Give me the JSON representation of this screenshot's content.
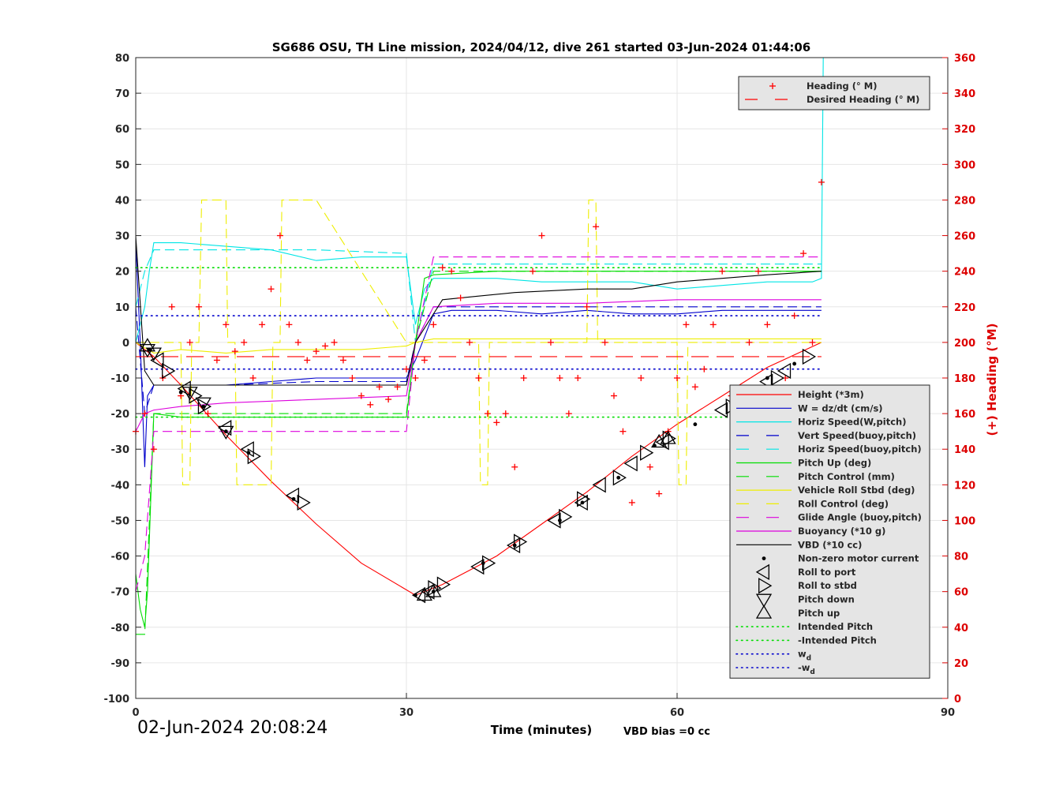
{
  "chart_data": {
    "type": "line",
    "title": "SG686 OSU, TH Line mission, 2024/04/12, dive 261 started 03-Jun-2024 01:44:06",
    "xlabel": "Time (minutes)",
    "ylabel_right": "(+) Heading (°M)",
    "xlim": [
      0,
      90
    ],
    "ylim_left": [
      -100,
      80
    ],
    "ylim_right": [
      0,
      360
    ],
    "x_ticks": [
      "0",
      "30",
      "60",
      "90"
    ],
    "y_ticks_left": [
      "80",
      "70",
      "60",
      "50",
      "40",
      "30",
      "20",
      "10",
      "0",
      "-10",
      "-20",
      "-30",
      "-40",
      "-50",
      "-60",
      "-70",
      "-80",
      "-90",
      "-100"
    ],
    "y_ticks_right": [
      "360",
      "340",
      "320",
      "300",
      "280",
      "260",
      "240",
      "220",
      "200",
      "180",
      "160",
      "140",
      "120",
      "100",
      "80",
      "60",
      "40",
      "20",
      "0"
    ],
    "grid": true,
    "colors": {
      "red": "#ff0000",
      "blue": "#0000cc",
      "cyan": "#00e5e5",
      "green": "#00dd00",
      "yellow": "#eeee00",
      "magenta": "#dd00dd",
      "black": "#000000",
      "axis_right": "#dd0000"
    },
    "timestamp": "02-Jun-2024 20:08:24",
    "vbd_bias": "VBD bias =0 cc",
    "legend_top": [
      {
        "name": "Heading (° M)",
        "style": "plus",
        "color": "#ff0000"
      },
      {
        "name": "Desired Heading (° M)",
        "style": "dash",
        "color": "#ff0000"
      }
    ],
    "legend_main": [
      {
        "name": "Height (*3m)",
        "style": "solid",
        "color": "#ff0000"
      },
      {
        "name": "W = dz/dt (cm/s)",
        "style": "solid",
        "color": "#0000cc"
      },
      {
        "name": "Horiz Speed(W,pitch)",
        "style": "solid",
        "color": "#00e5e5"
      },
      {
        "name": "Vert Speed(buoy,pitch)",
        "style": "dash",
        "color": "#0000cc"
      },
      {
        "name": "Horiz Speed(buoy,pitch)",
        "style": "dash",
        "color": "#00e5e5"
      },
      {
        "name": "Pitch Up (deg)",
        "style": "solid",
        "color": "#00dd00"
      },
      {
        "name": "Pitch Control (mm)",
        "style": "dash",
        "color": "#00dd00"
      },
      {
        "name": "Vehicle Roll Stbd (deg)",
        "style": "solid",
        "color": "#eeee00"
      },
      {
        "name": "Roll Control (deg)",
        "style": "dash",
        "color": "#eeee00"
      },
      {
        "name": "Glide Angle (buoy,pitch)",
        "style": "dash",
        "color": "#dd00dd"
      },
      {
        "name": "Buoyancy (*10 g)",
        "style": "solid",
        "color": "#dd00dd"
      },
      {
        "name": "VBD (*10 cc)",
        "style": "solid",
        "color": "#000000"
      },
      {
        "name": "Non-zero motor current",
        "style": "dot",
        "color": "#000000"
      },
      {
        "name": "Roll to port",
        "style": "tri-left",
        "color": "#000000"
      },
      {
        "name": "Roll to stbd",
        "style": "tri-right",
        "color": "#000000"
      },
      {
        "name": "Pitch down",
        "style": "tri-down",
        "color": "#000000"
      },
      {
        "name": "Pitch up",
        "style": "tri-up",
        "color": "#000000"
      },
      {
        "name": "Intended Pitch",
        "style": "dotted",
        "color": "#00dd00"
      },
      {
        "name": "-Intended Pitch",
        "style": "dotted",
        "color": "#00dd00"
      },
      {
        "name": "w",
        "sub": "d",
        "style": "dotted",
        "color": "#0000cc"
      },
      {
        "name": "-w",
        "sub": "d",
        "style": "dotted",
        "color": "#0000cc"
      }
    ],
    "series": [
      {
        "name": "Height (*3m)",
        "axis": "left",
        "color": "#ff0000",
        "x": [
          0,
          1,
          2,
          5,
          10,
          15,
          20,
          25,
          31,
          34,
          40,
          45,
          50,
          55,
          60,
          65,
          70,
          76
        ],
        "y": [
          0,
          -2,
          -4,
          -12,
          -26,
          -39,
          -51,
          -62,
          -71,
          -68,
          -60,
          -51,
          -42,
          -32,
          -23,
          -15,
          -7,
          0
        ]
      },
      {
        "name": "W = dz/dt (cm/s)",
        "axis": "left",
        "color": "#0000cc",
        "x": [
          0,
          0.5,
          1,
          1.3,
          2,
          5,
          10,
          15,
          20,
          25,
          30,
          31,
          33,
          35,
          40,
          45,
          50,
          55,
          60,
          65,
          70,
          76
        ],
        "y": [
          28,
          0,
          -35,
          -15,
          -12,
          -12,
          -12,
          -11,
          -10,
          -10,
          -10,
          -5,
          8,
          9,
          9,
          8,
          9,
          8,
          8,
          9,
          9,
          9
        ]
      },
      {
        "name": "Horiz Speed(W,pitch)",
        "axis": "left",
        "color": "#00e5e5",
        "x": [
          0,
          1,
          1.5,
          2,
          5,
          10,
          15,
          20,
          25,
          30,
          31,
          32,
          33,
          35,
          40,
          45,
          50,
          55,
          60,
          65,
          70,
          75,
          76,
          76.2
        ],
        "y": [
          0,
          10,
          20,
          28,
          28,
          27,
          26,
          23,
          24,
          24,
          5,
          15,
          18,
          18,
          18,
          17,
          17,
          17,
          15,
          16,
          17,
          17,
          18,
          80
        ]
      },
      {
        "name": "Vert Speed(buoy,pitch)",
        "axis": "left",
        "color": "#0000cc",
        "dash": "12,6",
        "x": [
          0,
          1,
          2,
          5,
          10,
          20,
          30,
          31,
          33,
          40,
          50,
          60,
          70,
          76
        ],
        "y": [
          10,
          -20,
          -12,
          -12,
          -12,
          -11,
          -11,
          0,
          10,
          10,
          10,
          10,
          10,
          10
        ]
      },
      {
        "name": "Horiz Speed(buoy,pitch)",
        "axis": "left",
        "color": "#00e5e5",
        "dash": "12,6",
        "x": [
          0,
          1,
          2,
          10,
          20,
          30,
          31,
          33,
          40,
          50,
          60,
          70,
          76
        ],
        "y": [
          10,
          20,
          26,
          26,
          26,
          25,
          0,
          22,
          22,
          22,
          22,
          22,
          22
        ]
      },
      {
        "name": "Pitch Up (deg)",
        "axis": "left",
        "color": "#00dd00",
        "x": [
          0,
          0.5,
          1,
          1.3,
          2,
          5,
          10,
          20,
          30,
          31,
          32,
          33,
          40,
          50,
          60,
          70,
          76
        ],
        "y": [
          -65,
          -75,
          -80,
          -70,
          -20,
          -21,
          -21,
          -21,
          -21,
          0,
          18,
          19,
          20,
          20,
          20,
          20,
          20
        ]
      },
      {
        "name": "Pitch Control (mm)",
        "axis": "left",
        "color": "#00dd00",
        "dash": "12,6",
        "x": [
          0,
          1,
          2,
          10,
          20,
          30,
          31,
          33,
          40,
          50,
          60,
          70,
          76
        ],
        "y": [
          -82,
          -82,
          -20,
          -20,
          -20,
          -20,
          0,
          20,
          20,
          20,
          20,
          20,
          20
        ]
      },
      {
        "name": "Vehicle Roll Stbd (deg)",
        "axis": "left",
        "color": "#eeee00",
        "x": [
          0,
          2,
          5,
          10,
          15,
          20,
          25,
          30,
          31,
          33,
          40,
          50,
          60,
          70,
          76
        ],
        "y": [
          0,
          -3,
          -2,
          -3,
          -2,
          -2,
          -2,
          -1,
          0,
          1,
          1,
          1,
          1,
          1,
          1
        ]
      },
      {
        "name": "Roll Control (deg)",
        "axis": "left",
        "color": "#eeee00",
        "dash": "12,6",
        "x": [
          0,
          5,
          5.2,
          6,
          6.2,
          7,
          7.3,
          10,
          10.2,
          11,
          11.2,
          15,
          15.2,
          16,
          16.2,
          20,
          30,
          31,
          34,
          38,
          38.2,
          39,
          39.2,
          50,
          50.2,
          51,
          51.2,
          60,
          60.2,
          61,
          61.2,
          70,
          76
        ],
        "y": [
          0,
          0,
          -40,
          -40,
          0,
          0,
          40,
          40,
          0,
          0,
          -40,
          -40,
          0,
          0,
          40,
          40,
          0,
          0,
          0,
          0,
          -40,
          -40,
          0,
          0,
          40,
          40,
          0,
          0,
          -40,
          -40,
          0,
          0,
          0
        ]
      },
      {
        "name": "Glide Angle (buoy,pitch)",
        "axis": "left",
        "color": "#dd00dd",
        "dash": "12,6",
        "x": [
          0,
          1,
          2,
          10,
          20,
          30,
          31,
          33,
          40,
          50,
          60,
          70,
          76
        ],
        "y": [
          -70,
          -60,
          -25,
          -25,
          -25,
          -25,
          0,
          24,
          24,
          24,
          24,
          24,
          24
        ]
      },
      {
        "name": "Buoyancy (*10 g)",
        "axis": "left",
        "color": "#dd00dd",
        "x": [
          0,
          1,
          2,
          5,
          10,
          20,
          30,
          31,
          33,
          40,
          50,
          60,
          70,
          76
        ],
        "y": [
          -25,
          -20,
          -19,
          -18,
          -17,
          -16,
          -15,
          0,
          10,
          11,
          11,
          12,
          12,
          12
        ]
      },
      {
        "name": "VBD (*10 cc)",
        "axis": "left",
        "color": "#000000",
        "x": [
          0,
          1,
          2,
          5,
          10,
          20,
          30,
          31,
          34,
          38,
          42,
          50,
          55,
          60,
          65,
          70,
          76
        ],
        "y": [
          30,
          -8,
          -12,
          -12,
          -12,
          -12,
          -12,
          0,
          12,
          13,
          14,
          15,
          15,
          17,
          18,
          19,
          20
        ]
      },
      {
        "name": "Intended Pitch",
        "axis": "left",
        "color": "#00dd00",
        "dotted": true,
        "x": [
          0,
          76
        ],
        "y": [
          21,
          21
        ]
      },
      {
        "name": "-Intended Pitch",
        "axis": "left",
        "color": "#00dd00",
        "dotted": true,
        "x": [
          0,
          76
        ],
        "y": [
          -21,
          -21
        ]
      },
      {
        "name": "w_d",
        "axis": "left",
        "color": "#0000cc",
        "dotted": true,
        "x": [
          0,
          76
        ],
        "y": [
          7.5,
          7.5
        ]
      },
      {
        "name": "-w_d",
        "axis": "left",
        "color": "#0000cc",
        "dotted": true,
        "x": [
          0,
          76
        ],
        "y": [
          -7.5,
          -7.5
        ]
      },
      {
        "name": "Desired Heading (° M)",
        "axis": "right",
        "color": "#ff0000",
        "dash": "22,10",
        "x": [
          0,
          76
        ],
        "y": [
          192,
          192
        ]
      },
      {
        "name": "Heading (° M)",
        "axis": "right",
        "color": "#ff0000",
        "markers": "plus",
        "x": [
          0,
          1,
          2,
          3,
          4,
          5,
          6,
          7,
          8,
          9,
          10,
          11,
          12,
          13,
          14,
          15,
          16,
          17,
          18,
          19,
          20,
          21,
          22,
          23,
          24,
          25,
          26,
          27,
          28,
          29,
          30,
          31,
          32,
          33,
          34,
          35,
          36,
          37,
          38,
          39,
          40,
          41,
          42,
          43,
          44,
          45,
          46,
          47,
          48,
          49,
          50,
          51,
          52,
          53,
          54,
          55,
          56,
          57,
          58,
          59,
          60,
          61,
          62,
          63,
          64,
          65,
          66,
          67,
          68,
          69,
          70,
          71,
          72,
          73,
          74,
          75,
          76
        ],
        "y": [
          150,
          160,
          140,
          180,
          220,
          170,
          200,
          220,
          160,
          190,
          210,
          195,
          200,
          180,
          210,
          230,
          260,
          210,
          200,
          190,
          195,
          198,
          200,
          190,
          180,
          170,
          165,
          175,
          168,
          175,
          185,
          180,
          190,
          210,
          242,
          240,
          225,
          200,
          180,
          160,
          155,
          160,
          130,
          180,
          240,
          260,
          200,
          180,
          160,
          180,
          220,
          265,
          200,
          170,
          150,
          110,
          180,
          130,
          115,
          150,
          180,
          210,
          175,
          185,
          210,
          240,
          170,
          160,
          200,
          240,
          210,
          155,
          180,
          215,
          250,
          200,
          290
        ]
      },
      {
        "name": "Non-zero motor current",
        "axis": "left",
        "color": "#000000",
        "markers": "dot",
        "x": [
          1.5,
          5,
          7.5,
          10,
          12.5,
          17.5,
          31,
          33,
          38.5,
          42,
          47,
          49.5,
          53.5,
          57.5,
          62,
          66,
          70,
          73
        ],
        "y": [
          -2,
          -14,
          -18,
          -25,
          -31,
          -44,
          -71,
          -70,
          -62,
          -57,
          -50,
          -45,
          -38,
          -29,
          -23,
          -17,
          -10,
          -6
        ]
      },
      {
        "name": "Roll to port",
        "axis": "left",
        "color": "#000000",
        "markers": "tri-left",
        "x": [
          2.5,
          5.5,
          10,
          12.5,
          17.5,
          31.5,
          32.5,
          38,
          42,
          46.5,
          49.5,
          51.5,
          55,
          58.5,
          65,
          70,
          72
        ],
        "y": [
          -5,
          -13,
          -24,
          -30,
          -43,
          -71,
          -70,
          -63,
          -57,
          -50,
          -45,
          -40,
          -34,
          -28,
          -19,
          -11,
          -8
        ]
      },
      {
        "name": "Roll to stbd",
        "axis": "left",
        "color": "#000000",
        "markers": "tri-right",
        "x": [
          3.5,
          6.5,
          7.5,
          13,
          18.5,
          33,
          34,
          39,
          42.5,
          47.5,
          49.5,
          53.5,
          56.5,
          59,
          66,
          71,
          74.5
        ],
        "y": [
          -8,
          -15,
          -18,
          -32,
          -45,
          -69,
          -68,
          -62,
          -56,
          -49,
          -44,
          -38,
          -31,
          -27,
          -18,
          -10,
          -4
        ]
      },
      {
        "name": "Pitch down",
        "axis": "left",
        "color": "#000000",
        "markers": "tri-down",
        "x": [
          1.3,
          2,
          6,
          7.5,
          10
        ],
        "y": [
          -2,
          -3,
          -14,
          -17,
          -25
        ]
      },
      {
        "name": "Pitch up",
        "axis": "left",
        "color": "#000000",
        "markers": "tri-up",
        "x": [
          1.3,
          32,
          33,
          58,
          59
        ],
        "y": [
          -1,
          -71,
          -70,
          -28,
          -27
        ]
      }
    ]
  }
}
